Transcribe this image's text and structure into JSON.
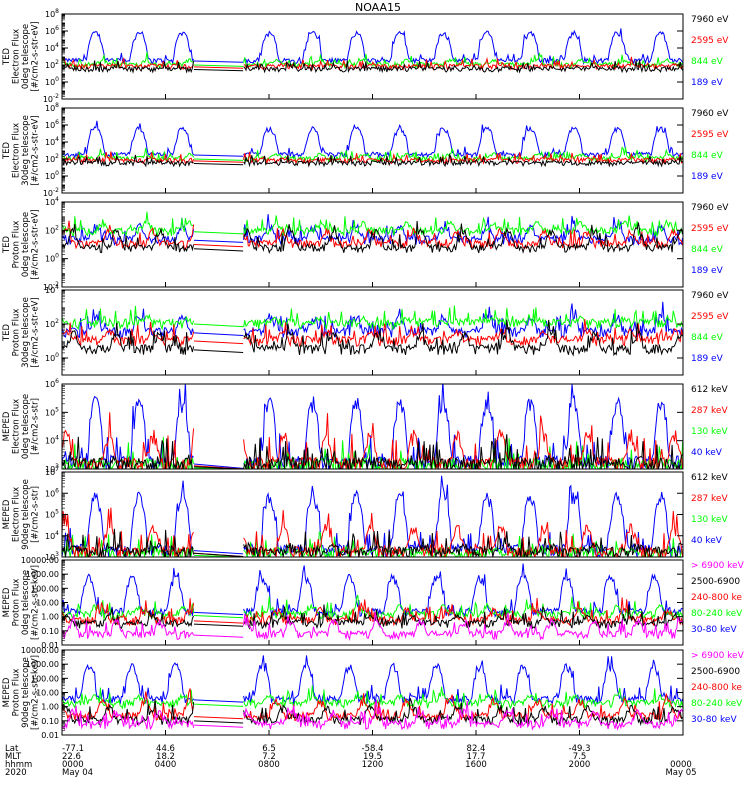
{
  "title": "NOAA15",
  "colors": {
    "black": "#000000",
    "red": "#ff0000",
    "green": "#00ff00",
    "blue": "#0000ff",
    "magenta": "#ff00ff"
  },
  "chart_data": [
    {
      "type": "line",
      "ylabel": [
        "TED",
        "Electron Flux",
        "0deg telescope",
        "[#/cm2-s-str-eV]"
      ],
      "yscale": "log",
      "ylim": [
        0.01,
        100000000
      ],
      "yticks": [
        "10^-2",
        "10^0",
        "10^2",
        "10^4",
        "10^6",
        "10^8"
      ],
      "series": [
        {
          "name": "7960 eV",
          "color": "#000000",
          "base": 30,
          "amp": 10
        },
        {
          "name": "2595 eV",
          "color": "#ff0000",
          "base": 60,
          "amp": 40
        },
        {
          "name": "844 eV",
          "color": "#00ff00",
          "base": 100,
          "amp": 300
        },
        {
          "name": "189 eV",
          "color": "#0000ff",
          "base": 300,
          "amp": 800000
        }
      ]
    },
    {
      "type": "line",
      "ylabel": [
        "TED",
        "Electron Flux",
        "30deg telescope",
        "[#/cm2-s-str-eV]"
      ],
      "yscale": "log",
      "ylim": [
        0.01,
        100000000
      ],
      "yticks": [
        "10^-2",
        "10^0",
        "10^2",
        "10^4",
        "10^6",
        "10^8"
      ],
      "series": [
        {
          "name": "7960 eV",
          "color": "#000000",
          "base": 30,
          "amp": 10
        },
        {
          "name": "2595 eV",
          "color": "#ff0000",
          "base": 60,
          "amp": 40
        },
        {
          "name": "844 eV",
          "color": "#00ff00",
          "base": 100,
          "amp": 300
        },
        {
          "name": "189 eV",
          "color": "#0000ff",
          "base": 300,
          "amp": 500000
        }
      ]
    },
    {
      "type": "line",
      "ylabel": [
        "TED",
        "Proton Flux",
        "0deg telescope",
        "[#/cm2-s-str-eV]"
      ],
      "yscale": "log",
      "ylim": [
        0.01,
        10000
      ],
      "yticks": [
        "10^-2",
        "10^0",
        "10^2",
        "10^4"
      ],
      "series": [
        {
          "name": "7960 eV",
          "color": "#000000",
          "base": 5,
          "amp": 100
        },
        {
          "name": "2595 eV",
          "color": "#ff0000",
          "base": 10,
          "amp": 100
        },
        {
          "name": "844 eV",
          "color": "#00ff00",
          "base": 80,
          "amp": 300
        },
        {
          "name": "189 eV",
          "color": "#0000ff",
          "base": 20,
          "amp": 200
        }
      ]
    },
    {
      "type": "line",
      "ylabel": [
        "TED",
        "Proton Flux",
        "30deg telescope",
        "[#/cm2-s-str-eV]"
      ],
      "yscale": "log",
      "ylim": [
        0.1,
        10000
      ],
      "yticks": [
        "10^0",
        "10^2",
        "10^4"
      ],
      "series": [
        {
          "name": "7960 eV",
          "color": "#000000",
          "base": 3,
          "amp": 30
        },
        {
          "name": "2595 eV",
          "color": "#ff0000",
          "base": 10,
          "amp": 30
        },
        {
          "name": "844 eV",
          "color": "#00ff00",
          "base": 100,
          "amp": 100
        },
        {
          "name": "189 eV",
          "color": "#0000ff",
          "base": 30,
          "amp": 300
        }
      ]
    },
    {
      "type": "line",
      "ylabel": [
        "MEPED",
        "Electron Flux",
        "0deg telescope",
        "[#/cm2-s-str]"
      ],
      "yscale": "log",
      "ylim": [
        1000,
        1000000
      ],
      "yticks": [
        "10^3",
        "10^4",
        "10^5",
        "10^6"
      ],
      "series": [
        {
          "name": "612 keV",
          "color": "#000000",
          "base": 1200,
          "amp": 800
        },
        {
          "name": "287 keV",
          "color": "#ff0000",
          "base": 1300,
          "amp": 20000
        },
        {
          "name": "130 keV",
          "color": "#00ff00",
          "base": 1100,
          "amp": 500
        },
        {
          "name": "40 keV",
          "color": "#0000ff",
          "base": 1500,
          "amp": 300000
        }
      ]
    },
    {
      "type": "line",
      "ylabel": [
        "MEPED",
        "Electron Flux",
        "90deg telescope",
        "[#/cm2-s-str]"
      ],
      "yscale": "log",
      "ylim": [
        1000,
        10000000
      ],
      "yticks": [
        "10^3",
        "10^4",
        "10^5",
        "10^6",
        "10^7"
      ],
      "series": [
        {
          "name": "612 keV",
          "color": "#000000",
          "base": 1500,
          "amp": 2000
        },
        {
          "name": "287 keV",
          "color": "#ff0000",
          "base": 1500,
          "amp": 30000
        },
        {
          "name": "130 keV",
          "color": "#00ff00",
          "base": 1200,
          "amp": 1000
        },
        {
          "name": "40 keV",
          "color": "#0000ff",
          "base": 2000,
          "amp": 1000000
        }
      ]
    },
    {
      "type": "line",
      "ylabel": [
        "MEPED",
        "Proton Flux",
        "0deg telescope",
        "[#/cm2-s-str-keV]"
      ],
      "yscale": "log",
      "ylim": [
        0.01,
        10000
      ],
      "yticks": [
        "0.01",
        "0.10",
        "1.00",
        "10.00",
        "100.00",
        "1000.00",
        "10000.00"
      ],
      "series": [
        {
          "name": "> 6900 keV",
          "color": "#ff00ff",
          "base": 0.05,
          "amp": 0.5
        },
        {
          "name": "2500-6900",
          "color": "#000000",
          "base": 0.3,
          "amp": 1
        },
        {
          "name": "240-800 ke",
          "color": "#ff0000",
          "base": 0.5,
          "amp": 3
        },
        {
          "name": "80-240 keV",
          "color": "#00ff00",
          "base": 1.2,
          "amp": 5
        },
        {
          "name": "30-80 keV",
          "color": "#0000ff",
          "base": 2,
          "amp": 800
        }
      ]
    },
    {
      "type": "line",
      "ylabel": [
        "MEPED",
        "Proton Flux",
        "90deg telescope",
        "[#/cm2-s-str-keV]"
      ],
      "yscale": "log",
      "ylim": [
        0.01,
        10000
      ],
      "yticks": [
        "0.01",
        "0.10",
        "1.00",
        "10.00",
        "100.00",
        "1000.00",
        "10000.00"
      ],
      "series": [
        {
          "name": "> 6900 keV",
          "color": "#ff00ff",
          "base": 0.05,
          "amp": 0.5
        },
        {
          "name": "2500-6900",
          "color": "#000000",
          "base": 0.1,
          "amp": 1
        },
        {
          "name": "240-800 ke",
          "color": "#ff0000",
          "base": 0.2,
          "amp": 3
        },
        {
          "name": "80-240 keV",
          "color": "#00ff00",
          "base": 1.5,
          "amp": 5
        },
        {
          "name": "30-80 keV",
          "color": "#0000ff",
          "base": 3,
          "amp": 1000
        }
      ]
    }
  ],
  "x_axis": {
    "row_labels": [
      "Lat",
      "MLT",
      "hhmm",
      "2020"
    ],
    "columns": [
      {
        "lat": "-77.1",
        "mlt": "22.6",
        "hhmm": "0000",
        "date": "May 04"
      },
      {
        "lat": "44.6",
        "mlt": "18.2",
        "hhmm": "0400",
        "date": ""
      },
      {
        "lat": "6.5",
        "mlt": "7.2",
        "hhmm": "0800",
        "date": ""
      },
      {
        "lat": "-58.4",
        "mlt": "19.5",
        "hhmm": "1200",
        "date": ""
      },
      {
        "lat": "82.4",
        "mlt": "17.7",
        "hhmm": "1600",
        "date": ""
      },
      {
        "lat": "-49.3",
        "mlt": "7.5",
        "hhmm": "2000",
        "date": ""
      },
      {
        "lat": "",
        "mlt": "",
        "hhmm": "0000",
        "date": "May 05"
      }
    ],
    "data_gap_hours": [
      5.1,
      7.0
    ]
  }
}
